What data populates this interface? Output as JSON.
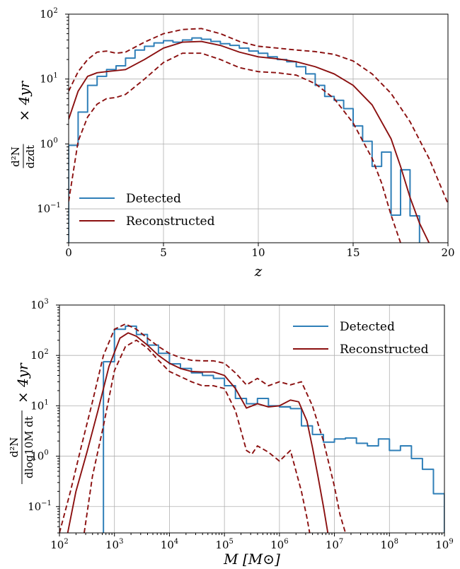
{
  "chart_data": [
    {
      "type": "line",
      "xlabel": "z",
      "ylabel": "d²N/dzdt × 4yr",
      "xscale": "linear",
      "yscale": "log",
      "xlim": [
        0,
        20
      ],
      "ylim": [
        0.03,
        100
      ],
      "xticks": [
        0,
        5,
        10,
        15,
        20
      ],
      "yticks": [
        0.1,
        1,
        10,
        100
      ],
      "ytick_labels": [
        "10",
        "10",
        "10",
        "10"
      ],
      "ytick_exps": [
        "−1",
        "0",
        "1",
        "2"
      ],
      "grid": true,
      "legend_position": "lower-left",
      "series": [
        {
          "name": "Detected",
          "style": "step",
          "color": "#2f7fb8",
          "edges": [
            0,
            0.5,
            1,
            1.5,
            2,
            2.5,
            3,
            3.5,
            4,
            4.5,
            5,
            5.5,
            6,
            6.5,
            7,
            7.5,
            8,
            8.5,
            9,
            9.5,
            10,
            10.5,
            11,
            11.5,
            12,
            12.5,
            13,
            13.5,
            14,
            14.5,
            15,
            15.5,
            16,
            16.5,
            17,
            17.5,
            18
          ],
          "values": [
            0.95,
            3.1,
            8,
            11,
            14,
            16,
            21,
            28,
            32,
            36,
            39,
            37,
            40,
            43,
            41,
            38,
            35,
            33,
            30,
            27,
            25,
            22,
            20,
            18.5,
            15.5,
            12,
            8,
            5.4,
            4.7,
            3.5,
            1.9,
            1.1,
            0.45,
            0.75,
            0.08,
            0.4,
            0.078
          ]
        },
        {
          "name": "Reconstructed",
          "style": "line",
          "color": "#8b1010",
          "x": [
            0,
            0.5,
            1,
            1.5,
            2,
            3,
            4,
            5,
            6,
            7,
            8,
            9,
            10,
            11,
            12,
            13,
            14,
            15,
            16,
            17,
            17.5,
            18,
            18.5,
            19
          ],
          "y": [
            2.4,
            6.5,
            11,
            12.5,
            13,
            14,
            20,
            30,
            37,
            38,
            33,
            26,
            22,
            20.5,
            18.5,
            15.5,
            12,
            8,
            4,
            1.2,
            0.45,
            0.15,
            0.06,
            0.03
          ]
        },
        {
          "name": "",
          "style": "dashed",
          "color": "#8b1010",
          "x": [
            0,
            0.5,
            1,
            1.5,
            2,
            2.5,
            3,
            4,
            5,
            6,
            7,
            8,
            9,
            10,
            11,
            12,
            13,
            14,
            15,
            16,
            17,
            18,
            19,
            20
          ],
          "y": [
            6.5,
            13,
            20,
            26,
            27,
            25,
            26,
            37,
            50,
            58,
            60,
            50,
            38,
            32,
            30,
            28,
            26.5,
            24,
            19,
            12,
            6,
            2.2,
            0.6,
            0.12
          ]
        },
        {
          "name": "",
          "style": "dashed",
          "color": "#8b1010",
          "x": [
            0,
            0.5,
            1,
            1.5,
            2,
            2.5,
            3,
            4,
            5,
            6,
            7,
            8,
            9,
            10,
            11,
            12,
            13,
            14,
            15,
            16,
            16.5,
            17,
            17.5
          ],
          "y": [
            0.13,
            1.1,
            2.6,
            4.1,
            5,
            5.2,
            5.8,
            10,
            18,
            25,
            25,
            20,
            15,
            13,
            12.5,
            11.5,
            8.5,
            5,
            2.1,
            0.6,
            0.25,
            0.08,
            0.03
          ]
        }
      ]
    },
    {
      "type": "line",
      "xlabel": "M [M⊙]",
      "ylabel": "d²N/dlog10M dt × 4yr",
      "xscale": "log",
      "yscale": "log",
      "xlim": [
        100,
        1000000000
      ],
      "ylim": [
        0.03,
        1000
      ],
      "xticks": [
        100,
        1000,
        10000,
        100000,
        1000000,
        10000000,
        100000000,
        1000000000
      ],
      "xtick_labels": [
        "10",
        "10",
        "10",
        "10",
        "10",
        "10",
        "10",
        "10"
      ],
      "xtick_exps": [
        "2",
        "3",
        "4",
        "5",
        "6",
        "7",
        "8",
        "9"
      ],
      "yticks": [
        0.1,
        1,
        10,
        100,
        1000
      ],
      "ytick_labels": [
        "10",
        "10",
        "10",
        "10",
        "10"
      ],
      "ytick_exps": [
        "−1",
        "0",
        "1",
        "2",
        "3"
      ],
      "grid": true,
      "legend_position": "top-right",
      "series": [
        {
          "name": "Detected",
          "style": "step",
          "color": "#2f7fb8",
          "log_edges": [
            2.8,
            3.0,
            3.2,
            3.4,
            3.6,
            3.8,
            4.0,
            4.2,
            4.4,
            4.6,
            4.8,
            5.0,
            5.2,
            5.4,
            5.6,
            5.8,
            6.0,
            6.2,
            6.4,
            6.6,
            6.8,
            7.0,
            7.2,
            7.4,
            7.6,
            7.8,
            8.0,
            8.2,
            8.4,
            8.6,
            8.8
          ],
          "values": [
            75,
            330,
            380,
            260,
            160,
            110,
            68,
            55,
            45,
            40,
            35,
            25,
            14,
            11,
            14,
            10,
            9.5,
            8.8,
            4,
            2.7,
            1.9,
            2.2,
            2.3,
            1.8,
            1.6,
            2.2,
            1.3,
            1.6,
            0.9,
            0.55,
            0.18
          ]
        },
        {
          "name": "Reconstructed",
          "style": "line",
          "color": "#8b1010",
          "log_x": [
            2.15,
            2.3,
            2.5,
            2.7,
            2.9,
            3.1,
            3.25,
            3.4,
            3.6,
            3.8,
            4.0,
            4.2,
            4.4,
            4.6,
            4.8,
            5.0,
            5.2,
            5.4,
            5.6,
            5.8,
            6.0,
            6.2,
            6.35,
            6.5,
            6.6,
            6.7,
            6.8,
            6.88
          ],
          "y": [
            0.03,
            0.2,
            1.2,
            8,
            60,
            220,
            280,
            240,
            160,
            100,
            70,
            55,
            48,
            47,
            47,
            40,
            22,
            9,
            11,
            9.5,
            10,
            13,
            12,
            5,
            1.5,
            0.4,
            0.1,
            0.03
          ]
        },
        {
          "name": "",
          "style": "dashed",
          "color": "#8b1010",
          "log_x": [
            2.0,
            2.2,
            2.4,
            2.6,
            2.8,
            3.0,
            3.2,
            3.4,
            3.6,
            3.8,
            4.0,
            4.2,
            4.4,
            4.6,
            4.8,
            5.0,
            5.2,
            5.4,
            5.6,
            5.8,
            6.0,
            6.2,
            6.4,
            6.6,
            6.8,
            7.0,
            7.1,
            7.2
          ],
          "y": [
            0.03,
            0.2,
            1.6,
            12,
            100,
            330,
            420,
            330,
            220,
            150,
            110,
            90,
            80,
            78,
            78,
            70,
            45,
            26,
            35,
            25,
            30,
            26,
            30,
            10,
            2,
            0.25,
            0.07,
            0.03
          ]
        },
        {
          "name": "",
          "style": "dashed",
          "color": "#8b1010",
          "log_x": [
            2.45,
            2.6,
            2.8,
            3.0,
            3.2,
            3.4,
            3.6,
            3.8,
            4.0,
            4.2,
            4.4,
            4.6,
            4.8,
            5.0,
            5.2,
            5.4,
            5.5,
            5.6,
            5.8,
            6.0,
            6.2,
            6.4,
            6.5,
            6.55
          ],
          "y": [
            0.03,
            0.4,
            4,
            50,
            150,
            200,
            140,
            80,
            48,
            38,
            30,
            25,
            25,
            22,
            8,
            1.3,
            1.1,
            1.6,
            1.2,
            0.8,
            1.3,
            0.2,
            0.06,
            0.03
          ]
        }
      ]
    }
  ],
  "legend": {
    "detected": "Detected",
    "reconstructed": "Reconstructed"
  }
}
